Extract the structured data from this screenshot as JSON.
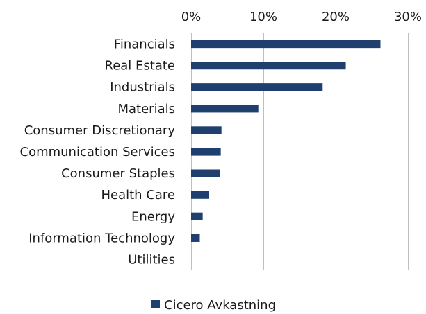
{
  "chart_data": {
    "type": "bar",
    "orientation": "horizontal",
    "categories": [
      "Financials",
      "Real Estate",
      "Industrials",
      "Materials",
      "Consumer Discretionary",
      "Communication Services",
      "Consumer Staples",
      "Health Care",
      "Energy",
      "Information Technology",
      "Utilities"
    ],
    "series": [
      {
        "name": "Cicero Avkastning",
        "color": "#1f3f6e",
        "values": [
          26.2,
          21.4,
          18.2,
          9.3,
          4.2,
          4.1,
          4.0,
          2.5,
          1.6,
          1.2,
          0.0
        ]
      }
    ],
    "xlim": [
      0,
      30
    ],
    "xticks": [
      0,
      10,
      20,
      30
    ],
    "xtick_labels": [
      "0%",
      "10%",
      "20%",
      "30%"
    ],
    "x_axis_position": "top",
    "grid": true,
    "legend": "bottom"
  }
}
